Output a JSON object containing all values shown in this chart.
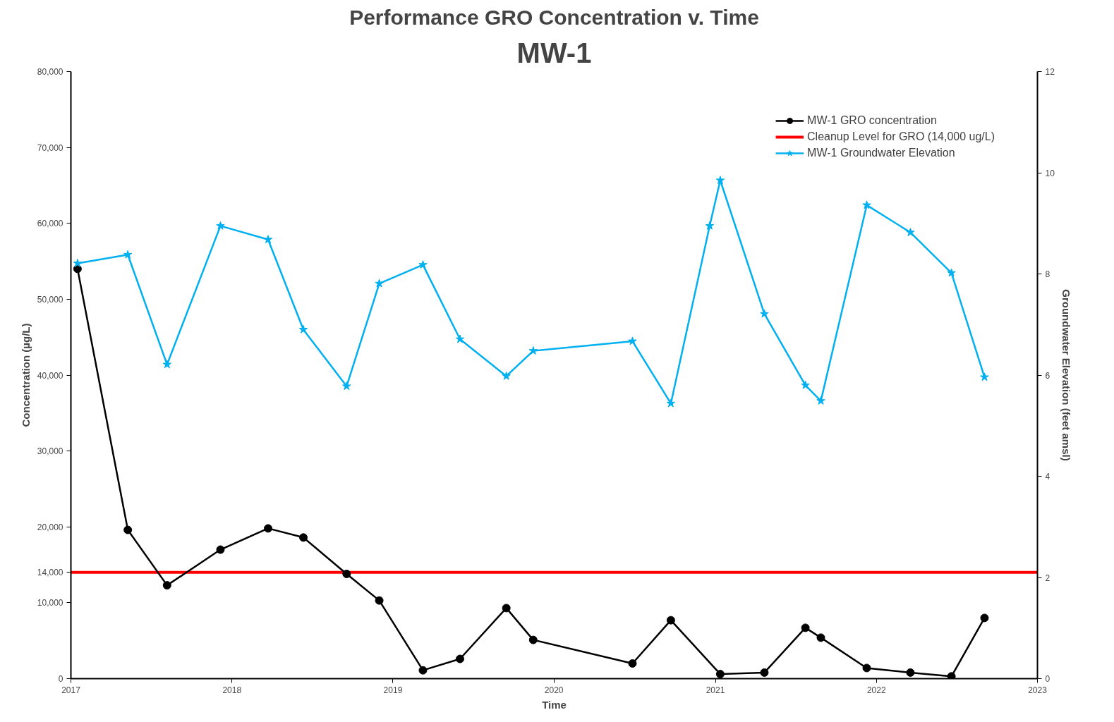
{
  "chart_data": {
    "type": "line",
    "title": "Performance GRO Concentration v. Time",
    "subtitle": "MW-1",
    "xlabel": "Time",
    "ylabel": "Concentration (µg/L)",
    "y2label": "Groundwater Elevation (feet amsl)",
    "xlim": [
      "2017",
      "2023"
    ],
    "xticks": [
      "2017",
      "2018",
      "2019",
      "2020",
      "2021",
      "2022",
      "2023"
    ],
    "ylim": [
      0,
      80000
    ],
    "yticks": [
      0,
      {
        "value": 10000,
        "label": "10,000"
      },
      {
        "value": 14000,
        "label": "14,000"
      },
      {
        "value": 20000,
        "label": "20,000"
      },
      {
        "value": 30000,
        "label": "30,000"
      },
      {
        "value": 40000,
        "label": "40,000"
      },
      {
        "value": 50000,
        "label": "50,000"
      },
      {
        "value": 60000,
        "label": "60,000"
      },
      {
        "value": 70000,
        "label": "70,000"
      },
      {
        "value": 80000,
        "label": "80,000"
      }
    ],
    "y2lim": [
      0,
      12
    ],
    "y2ticks": [
      0,
      2,
      4,
      6,
      8,
      10,
      12
    ],
    "grid": false,
    "legend": "top right",
    "series": [
      {
        "name": "MW-1 GRO concentration",
        "color": "#000000",
        "marker": "circle",
        "x": [
          "2017-01-16",
          "2017-05-10",
          "2017-08-07",
          "2017-12-06",
          "2018-03-24",
          "2018-06-12",
          "2018-09-18",
          "2018-12-01",
          "2019-03-10",
          "2019-06-02",
          "2019-09-15",
          "2019-11-15",
          "2020-06-27",
          "2020-09-22",
          "2021-01-12",
          "2021-04-22",
          "2021-07-24",
          "2021-08-28",
          "2021-12-10",
          "2022-03-19",
          "2022-06-20",
          "2022-09-03"
        ],
        "values": [
          54000,
          19600,
          12300,
          17000,
          19800,
          18600,
          13800,
          10300,
          1100,
          2600,
          9300,
          5100,
          2000,
          7700,
          600,
          800,
          6700,
          5400,
          1400,
          800,
          300,
          8000
        ]
      },
      {
        "name": "MW-1 Groundwater Elevation",
        "color": "#00b0f0",
        "marker": "star",
        "axis": "y2",
        "x": [
          "2017-01-16",
          "2017-05-10",
          "2017-08-07",
          "2017-12-06",
          "2018-03-24",
          "2018-06-12",
          "2018-09-18",
          "2018-12-01",
          "2019-03-10",
          "2019-06-02",
          "2019-09-15",
          "2019-11-15",
          "2020-06-27",
          "2020-09-22",
          "2020-12-19",
          "2021-01-12",
          "2021-04-22",
          "2021-07-24",
          "2021-08-28",
          "2021-12-10",
          "2022-03-19",
          "2022-06-20",
          "2022-09-03"
        ],
        "values": [
          8.21,
          8.38,
          6.21,
          8.95,
          8.68,
          6.9,
          5.78,
          7.81,
          8.18,
          6.71,
          5.98,
          6.48,
          6.67,
          5.44,
          8.95,
          9.85,
          7.21,
          5.8,
          5.49,
          9.36,
          8.82,
          8.02,
          5.96
        ]
      }
    ],
    "ref_lines": [
      {
        "axis": "y",
        "value": 14000,
        "label": "Cleanup Level for GRO (14,000 ug/L)",
        "color": "#ff0000"
      }
    ]
  }
}
